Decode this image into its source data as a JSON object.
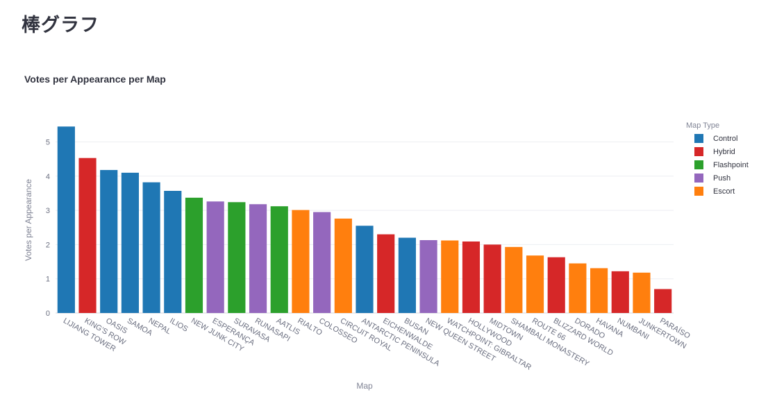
{
  "page": {
    "heading": "棒グラフ"
  },
  "chart_data": {
    "type": "bar",
    "title": "Votes per Appearance per Map",
    "xlabel": "Map",
    "ylabel": "Votes per Appearance",
    "ylim": [
      0,
      5.7
    ],
    "yticks": [
      0,
      1,
      2,
      3,
      4,
      5
    ],
    "grid": true,
    "legend_position": "right",
    "legend": {
      "title": "Map Type",
      "entries": [
        {
          "name": "Control",
          "color": "#1f77b4"
        },
        {
          "name": "Hybrid",
          "color": "#d62728"
        },
        {
          "name": "Flashpoint",
          "color": "#2ca02c"
        },
        {
          "name": "Push",
          "color": "#9467bd"
        },
        {
          "name": "Escort",
          "color": "#ff7f0e"
        }
      ]
    },
    "bars": [
      {
        "map": "LIJIANG TOWER",
        "value": 5.45,
        "type": "Control"
      },
      {
        "map": "KING'S ROW",
        "value": 4.53,
        "type": "Hybrid"
      },
      {
        "map": "OASIS",
        "value": 4.18,
        "type": "Control"
      },
      {
        "map": "SAMOA",
        "value": 4.1,
        "type": "Control"
      },
      {
        "map": "NEPAL",
        "value": 3.82,
        "type": "Control"
      },
      {
        "map": "ILIOS",
        "value": 3.57,
        "type": "Control"
      },
      {
        "map": "NEW JUNK CITY",
        "value": 3.37,
        "type": "Flashpoint"
      },
      {
        "map": "ESPERANÇA",
        "value": 3.26,
        "type": "Push"
      },
      {
        "map": "SURAVASA",
        "value": 3.24,
        "type": "Flashpoint"
      },
      {
        "map": "RUNASAPI",
        "value": 3.18,
        "type": "Push"
      },
      {
        "map": "AATLIS",
        "value": 3.12,
        "type": "Flashpoint"
      },
      {
        "map": "RIALTO",
        "value": 3.01,
        "type": "Escort"
      },
      {
        "map": "COLOSSEO",
        "value": 2.95,
        "type": "Push"
      },
      {
        "map": "CIRCUIT ROYAL",
        "value": 2.76,
        "type": "Escort"
      },
      {
        "map": "ANTARCTIC PENINSULA",
        "value": 2.55,
        "type": "Control"
      },
      {
        "map": "EICHENWALDE",
        "value": 2.3,
        "type": "Hybrid"
      },
      {
        "map": "BUSAN",
        "value": 2.2,
        "type": "Control"
      },
      {
        "map": "NEW QUEEN STREET",
        "value": 2.13,
        "type": "Push"
      },
      {
        "map": "WATCHPOINT: GIBRALTAR",
        "value": 2.12,
        "type": "Escort"
      },
      {
        "map": "HOLLYWOOD",
        "value": 2.09,
        "type": "Hybrid"
      },
      {
        "map": "MIDTOWN",
        "value": 2.0,
        "type": "Hybrid"
      },
      {
        "map": "SHAMBALI MONASTERY",
        "value": 1.93,
        "type": "Escort"
      },
      {
        "map": "ROUTE 66",
        "value": 1.68,
        "type": "Escort"
      },
      {
        "map": "BLIZZARD WORLD",
        "value": 1.63,
        "type": "Hybrid"
      },
      {
        "map": "DORADO",
        "value": 1.45,
        "type": "Escort"
      },
      {
        "map": "HAVANA",
        "value": 1.31,
        "type": "Escort"
      },
      {
        "map": "NUMBANI",
        "value": 1.22,
        "type": "Hybrid"
      },
      {
        "map": "JUNKERTOWN",
        "value": 1.18,
        "type": "Escort"
      },
      {
        "map": "PARAÍSO",
        "value": 0.7,
        "type": "Hybrid"
      }
    ]
  }
}
